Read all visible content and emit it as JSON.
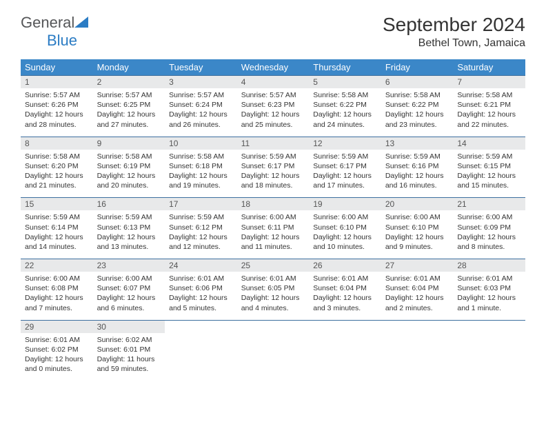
{
  "brand": {
    "part1": "General",
    "part2": "Blue"
  },
  "title": "September 2024",
  "location": "Bethel Town, Jamaica",
  "colors": {
    "header_bg": "#3b87c8",
    "header_text": "#ffffff",
    "row_border": "#3b6e9e",
    "daynum_bg": "#e8e9ea",
    "text": "#333333",
    "brand_blue": "#2b7cc4",
    "brand_gray": "#555658"
  },
  "day_headers": [
    "Sunday",
    "Monday",
    "Tuesday",
    "Wednesday",
    "Thursday",
    "Friday",
    "Saturday"
  ],
  "weeks": [
    [
      {
        "n": "1",
        "sr": "5:57 AM",
        "ss": "6:26 PM",
        "dl": "12 hours and 28 minutes."
      },
      {
        "n": "2",
        "sr": "5:57 AM",
        "ss": "6:25 PM",
        "dl": "12 hours and 27 minutes."
      },
      {
        "n": "3",
        "sr": "5:57 AM",
        "ss": "6:24 PM",
        "dl": "12 hours and 26 minutes."
      },
      {
        "n": "4",
        "sr": "5:57 AM",
        "ss": "6:23 PM",
        "dl": "12 hours and 25 minutes."
      },
      {
        "n": "5",
        "sr": "5:58 AM",
        "ss": "6:22 PM",
        "dl": "12 hours and 24 minutes."
      },
      {
        "n": "6",
        "sr": "5:58 AM",
        "ss": "6:22 PM",
        "dl": "12 hours and 23 minutes."
      },
      {
        "n": "7",
        "sr": "5:58 AM",
        "ss": "6:21 PM",
        "dl": "12 hours and 22 minutes."
      }
    ],
    [
      {
        "n": "8",
        "sr": "5:58 AM",
        "ss": "6:20 PM",
        "dl": "12 hours and 21 minutes."
      },
      {
        "n": "9",
        "sr": "5:58 AM",
        "ss": "6:19 PM",
        "dl": "12 hours and 20 minutes."
      },
      {
        "n": "10",
        "sr": "5:58 AM",
        "ss": "6:18 PM",
        "dl": "12 hours and 19 minutes."
      },
      {
        "n": "11",
        "sr": "5:59 AM",
        "ss": "6:17 PM",
        "dl": "12 hours and 18 minutes."
      },
      {
        "n": "12",
        "sr": "5:59 AM",
        "ss": "6:17 PM",
        "dl": "12 hours and 17 minutes."
      },
      {
        "n": "13",
        "sr": "5:59 AM",
        "ss": "6:16 PM",
        "dl": "12 hours and 16 minutes."
      },
      {
        "n": "14",
        "sr": "5:59 AM",
        "ss": "6:15 PM",
        "dl": "12 hours and 15 minutes."
      }
    ],
    [
      {
        "n": "15",
        "sr": "5:59 AM",
        "ss": "6:14 PM",
        "dl": "12 hours and 14 minutes."
      },
      {
        "n": "16",
        "sr": "5:59 AM",
        "ss": "6:13 PM",
        "dl": "12 hours and 13 minutes."
      },
      {
        "n": "17",
        "sr": "5:59 AM",
        "ss": "6:12 PM",
        "dl": "12 hours and 12 minutes."
      },
      {
        "n": "18",
        "sr": "6:00 AM",
        "ss": "6:11 PM",
        "dl": "12 hours and 11 minutes."
      },
      {
        "n": "19",
        "sr": "6:00 AM",
        "ss": "6:10 PM",
        "dl": "12 hours and 10 minutes."
      },
      {
        "n": "20",
        "sr": "6:00 AM",
        "ss": "6:10 PM",
        "dl": "12 hours and 9 minutes."
      },
      {
        "n": "21",
        "sr": "6:00 AM",
        "ss": "6:09 PM",
        "dl": "12 hours and 8 minutes."
      }
    ],
    [
      {
        "n": "22",
        "sr": "6:00 AM",
        "ss": "6:08 PM",
        "dl": "12 hours and 7 minutes."
      },
      {
        "n": "23",
        "sr": "6:00 AM",
        "ss": "6:07 PM",
        "dl": "12 hours and 6 minutes."
      },
      {
        "n": "24",
        "sr": "6:01 AM",
        "ss": "6:06 PM",
        "dl": "12 hours and 5 minutes."
      },
      {
        "n": "25",
        "sr": "6:01 AM",
        "ss": "6:05 PM",
        "dl": "12 hours and 4 minutes."
      },
      {
        "n": "26",
        "sr": "6:01 AM",
        "ss": "6:04 PM",
        "dl": "12 hours and 3 minutes."
      },
      {
        "n": "27",
        "sr": "6:01 AM",
        "ss": "6:04 PM",
        "dl": "12 hours and 2 minutes."
      },
      {
        "n": "28",
        "sr": "6:01 AM",
        "ss": "6:03 PM",
        "dl": "12 hours and 1 minute."
      }
    ],
    [
      {
        "n": "29",
        "sr": "6:01 AM",
        "ss": "6:02 PM",
        "dl": "12 hours and 0 minutes."
      },
      {
        "n": "30",
        "sr": "6:02 AM",
        "ss": "6:01 PM",
        "dl": "11 hours and 59 minutes."
      },
      null,
      null,
      null,
      null,
      null
    ]
  ],
  "labels": {
    "sunrise": "Sunrise: ",
    "sunset": "Sunset: ",
    "daylight": "Daylight: "
  }
}
